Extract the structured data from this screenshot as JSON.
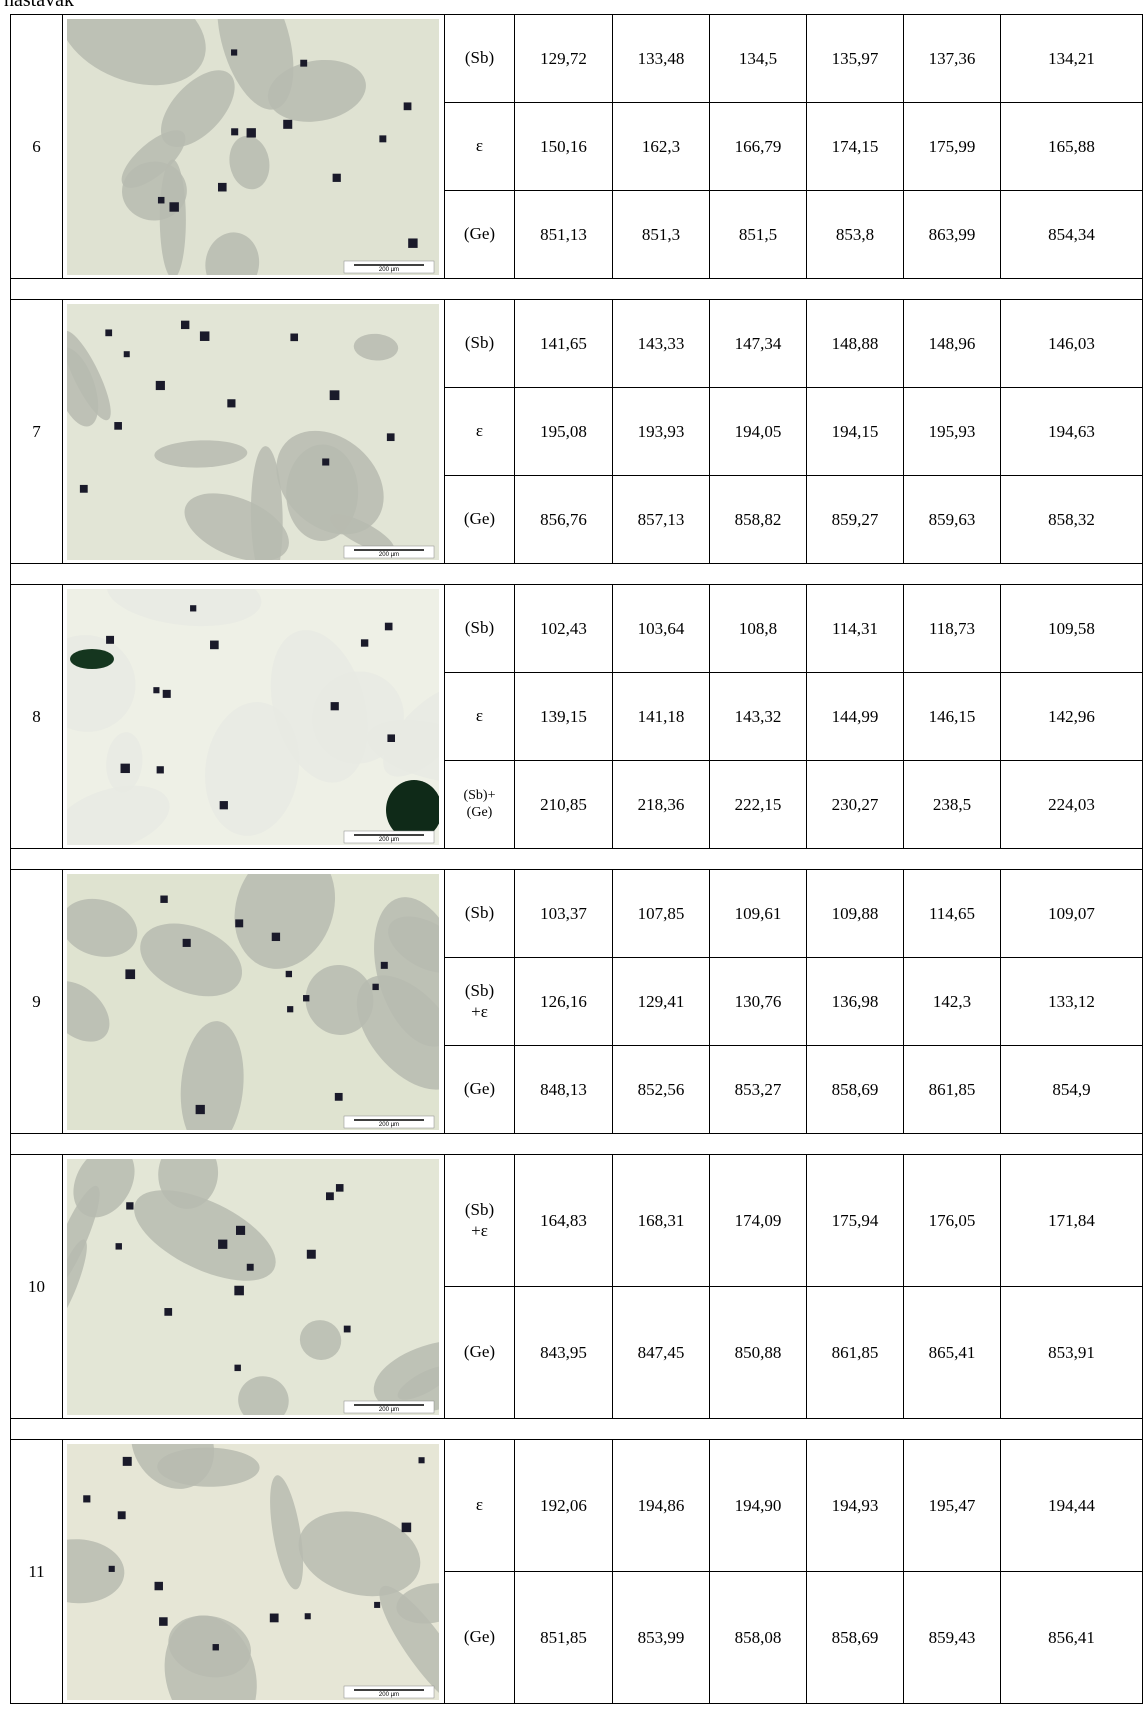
{
  "header": {
    "caption": "nastavak"
  },
  "table": {
    "groups": [
      {
        "number": "6",
        "scale_label": "200 µm",
        "rows": [
          {
            "phase": "(Sb)",
            "values": [
              "129,72",
              "133,48",
              "134,5",
              "135,97",
              "137,36",
              "134,21"
            ]
          },
          {
            "phase": "ε",
            "values": [
              "150,16",
              "162,3",
              "166,79",
              "174,15",
              "175,99",
              "165,88"
            ]
          },
          {
            "phase": "(Ge)",
            "values": [
              "851,13",
              "851,3",
              "851,5",
              "853,8",
              "863,99",
              "854,34"
            ]
          }
        ]
      },
      {
        "number": "7",
        "scale_label": "200 µm",
        "rows": [
          {
            "phase": "(Sb)",
            "values": [
              "141,65",
              "143,33",
              "147,34",
              "148,88",
              "148,96",
              "146,03"
            ]
          },
          {
            "phase": "ε",
            "values": [
              "195,08",
              "193,93",
              "194,05",
              "194,15",
              "195,93",
              "194,63"
            ]
          },
          {
            "phase": "(Ge)",
            "values": [
              "856,76",
              "857,13",
              "858,82",
              "859,27",
              "859,63",
              "858,32"
            ]
          }
        ]
      },
      {
        "number": "8",
        "scale_label": "200 µm",
        "rows": [
          {
            "phase": "(Sb)",
            "values": [
              "102,43",
              "103,64",
              "108,8",
              "114,31",
              "118,73",
              "109,58"
            ]
          },
          {
            "phase": "ε",
            "values": [
              "139,15",
              "141,18",
              "143,32",
              "144,99",
              "146,15",
              "142,96"
            ]
          },
          {
            "phase": "(Sb)+\n(Ge)",
            "values": [
              "210,85",
              "218,36",
              "222,15",
              "230,27",
              "238,5",
              "224,03"
            ]
          }
        ]
      },
      {
        "number": "9",
        "scale_label": "200 µm",
        "rows": [
          {
            "phase": "(Sb)",
            "values": [
              "103,37",
              "107,85",
              "109,61",
              "109,88",
              "114,65",
              "109,07"
            ]
          },
          {
            "phase": "(Sb)\n+ε",
            "values": [
              "126,16",
              "129,41",
              "130,76",
              "136,98",
              "142,3",
              "133,12"
            ]
          },
          {
            "phase": "(Ge)",
            "values": [
              "848,13",
              "852,56",
              "853,27",
              "858,69",
              "861,85",
              "854,9"
            ]
          }
        ]
      },
      {
        "number": "10",
        "scale_label": "200 µm",
        "rows": [
          {
            "phase": "(Sb)\n+ε",
            "values": [
              "164,83",
              "168,31",
              "174,09",
              "175,94",
              "176,05",
              "171,84"
            ]
          },
          {
            "phase": "(Ge)",
            "values": [
              "843,95",
              "847,45",
              "850,88",
              "861,85",
              "865,41",
              "853,91"
            ]
          }
        ]
      },
      {
        "number": "11",
        "scale_label": "200 µm",
        "rows": [
          {
            "phase": "ε",
            "values": [
              "192,06",
              "194,86",
              "194,90",
              "194,93",
              "195,47",
              "194,44"
            ]
          },
          {
            "phase": "(Ge)",
            "values": [
              "851,85",
              "853,99",
              "858,08",
              "858,69",
              "859,43",
              "856,41"
            ]
          }
        ]
      }
    ]
  }
}
